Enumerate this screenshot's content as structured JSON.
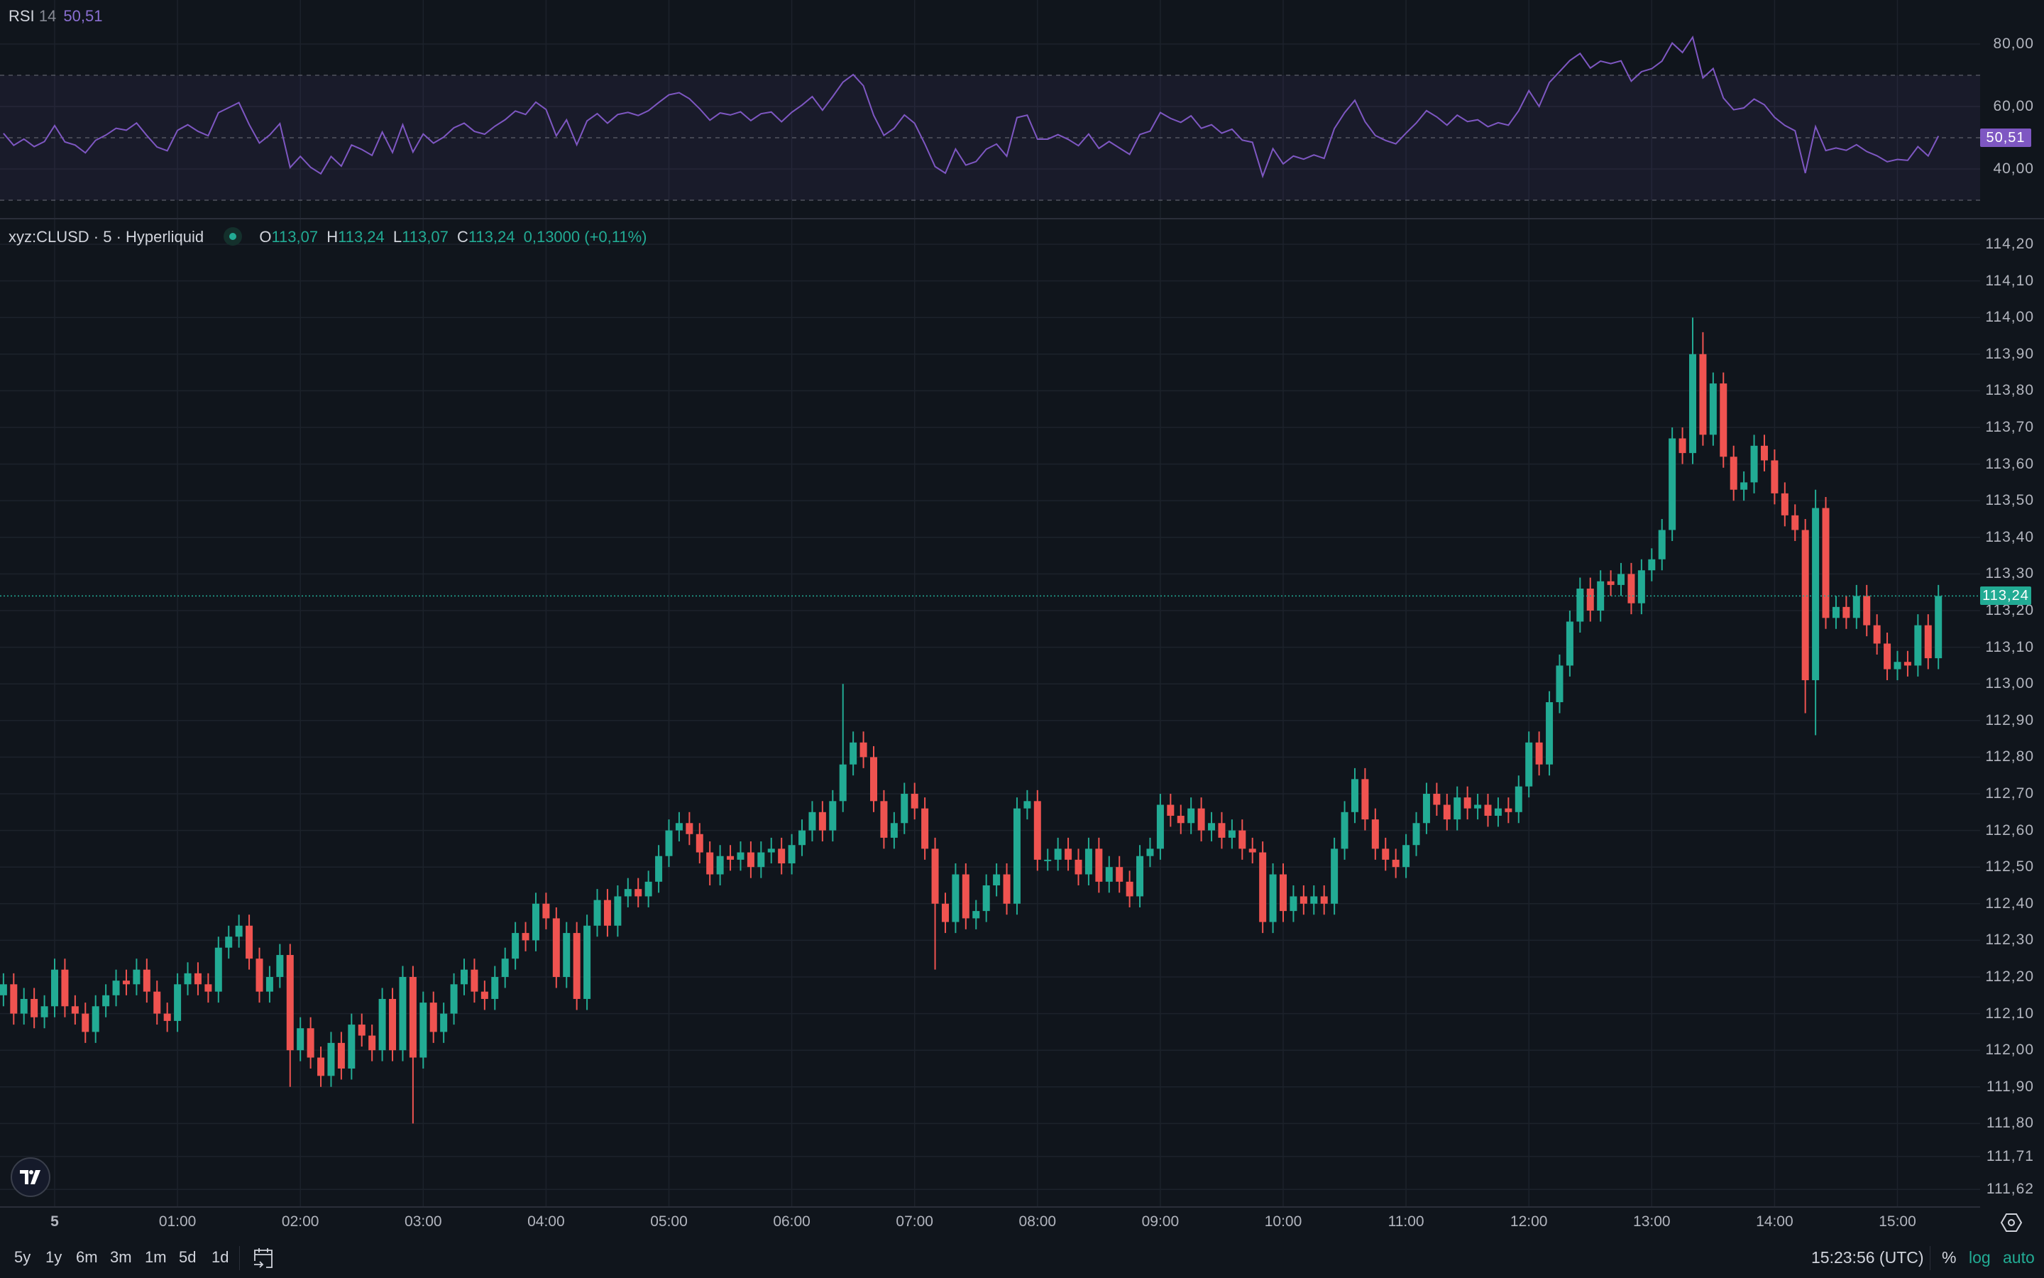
{
  "rsi": {
    "name": "RSI",
    "length": "14",
    "value": "50,51",
    "axis_labels": [
      {
        "v": 80,
        "t": "80,00"
      },
      {
        "v": 60,
        "t": "60,00"
      },
      {
        "v": 40,
        "t": "40,00"
      }
    ],
    "levels": {
      "upper": 70,
      "middle": 50,
      "lower": 30
    },
    "line_color": "#7e57c2"
  },
  "legend": {
    "symbol": "xyz:CLUSD · 5 · Hyperliquid",
    "o_label": "O",
    "o": "113,07",
    "h_label": "H",
    "h": "113,24",
    "l_label": "L",
    "l": "113,07",
    "c_label": "C",
    "c": "113,24",
    "change": "0,13000 (+0,11%)",
    "status": "market-open"
  },
  "colors": {
    "up": "#22ab94",
    "down": "#ef5350",
    "background": "#10151c",
    "grid": "#1c222b",
    "rsi": "#7e57c2"
  },
  "price_axis": [
    {
      "v": 114.2,
      "t": "114,20"
    },
    {
      "v": 114.1,
      "t": "114,10"
    },
    {
      "v": 114.0,
      "t": "114,00"
    },
    {
      "v": 113.9,
      "t": "113,90"
    },
    {
      "v": 113.8,
      "t": "113,80"
    },
    {
      "v": 113.7,
      "t": "113,70"
    },
    {
      "v": 113.6,
      "t": "113,60"
    },
    {
      "v": 113.5,
      "t": "113,50"
    },
    {
      "v": 113.4,
      "t": "113,40"
    },
    {
      "v": 113.3,
      "t": "113,30"
    },
    {
      "v": 113.2,
      "t": "113,20"
    },
    {
      "v": 113.1,
      "t": "113,10"
    },
    {
      "v": 113.0,
      "t": "113,00"
    },
    {
      "v": 112.9,
      "t": "112,90"
    },
    {
      "v": 112.8,
      "t": "112,80"
    },
    {
      "v": 112.7,
      "t": "112,70"
    },
    {
      "v": 112.6,
      "t": "112,60"
    },
    {
      "v": 112.5,
      "t": "112,50"
    },
    {
      "v": 112.4,
      "t": "112,40"
    },
    {
      "v": 112.3,
      "t": "112,30"
    },
    {
      "v": 112.2,
      "t": "112,20"
    },
    {
      "v": 112.1,
      "t": "112,10"
    },
    {
      "v": 112.0,
      "t": "112,00"
    },
    {
      "v": 111.9,
      "t": "111,90"
    },
    {
      "v": 111.8,
      "t": "111,80"
    },
    {
      "v": 111.71,
      "t": "111,71"
    },
    {
      "v": 111.62,
      "t": "111,62"
    }
  ],
  "current_price": {
    "v": 113.24,
    "t": "113,24"
  },
  "time_axis": [
    {
      "h": 0,
      "t": "5"
    },
    {
      "h": 1,
      "t": "01:00"
    },
    {
      "h": 2,
      "t": "02:00"
    },
    {
      "h": 3,
      "t": "03:00"
    },
    {
      "h": 4,
      "t": "04:00"
    },
    {
      "h": 5,
      "t": "05:00"
    },
    {
      "h": 6,
      "t": "06:00"
    },
    {
      "h": 7,
      "t": "07:00"
    },
    {
      "h": 8,
      "t": "08:00"
    },
    {
      "h": 9,
      "t": "09:00"
    },
    {
      "h": 10,
      "t": "10:00"
    },
    {
      "h": 11,
      "t": "11:00"
    },
    {
      "h": 12,
      "t": "12:00"
    },
    {
      "h": 13,
      "t": "13:00"
    },
    {
      "h": 14,
      "t": "14:00"
    },
    {
      "h": 15,
      "t": "15:00"
    }
  ],
  "chart_data": {
    "type": "candlestick",
    "interval_minutes": 5,
    "first_open": 112.15,
    "close": [
      112.18,
      112.1,
      112.14,
      112.09,
      112.12,
      112.22,
      112.12,
      112.1,
      112.05,
      112.12,
      112.15,
      112.19,
      112.18,
      112.22,
      112.16,
      112.1,
      112.08,
      112.18,
      112.21,
      112.18,
      112.16,
      112.28,
      112.31,
      112.34,
      112.25,
      112.16,
      112.2,
      112.26,
      112.0,
      112.06,
      111.98,
      111.93,
      112.02,
      111.95,
      112.07,
      112.04,
      112.0,
      112.14,
      112.0,
      112.2,
      111.98,
      112.13,
      112.05,
      112.1,
      112.18,
      112.22,
      112.16,
      112.14,
      112.2,
      112.25,
      112.32,
      112.3,
      112.4,
      112.36,
      112.2,
      112.32,
      112.14,
      112.34,
      112.41,
      112.34,
      112.42,
      112.44,
      112.42,
      112.46,
      112.53,
      112.6,
      112.62,
      112.59,
      112.54,
      112.48,
      112.53,
      112.52,
      112.54,
      112.5,
      112.54,
      112.55,
      112.51,
      112.56,
      112.6,
      112.65,
      112.6,
      112.68,
      112.78,
      112.84,
      112.8,
      112.68,
      112.58,
      112.62,
      112.7,
      112.66,
      112.55,
      112.4,
      112.35,
      112.48,
      112.36,
      112.38,
      112.45,
      112.48,
      112.4,
      112.66,
      112.68,
      112.52,
      112.52,
      112.55,
      112.52,
      112.48,
      112.55,
      112.46,
      112.5,
      112.46,
      112.42,
      112.53,
      112.55,
      112.67,
      112.64,
      112.62,
      112.66,
      112.6,
      112.62,
      112.58,
      112.6,
      112.55,
      112.54,
      112.35,
      112.48,
      112.38,
      112.42,
      112.4,
      112.42,
      112.4,
      112.55,
      112.65,
      112.74,
      112.63,
      112.55,
      112.52,
      112.5,
      112.56,
      112.62,
      112.7,
      112.67,
      112.63,
      112.69,
      112.66,
      112.67,
      112.64,
      112.66,
      112.65,
      112.72,
      112.84,
      112.78,
      112.95,
      113.05,
      113.17,
      113.26,
      113.2,
      113.28,
      113.27,
      113.3,
      113.22,
      113.31,
      113.34,
      113.42,
      113.67,
      113.63,
      113.9,
      113.68,
      113.82,
      113.62,
      113.53,
      113.55,
      113.65,
      113.61,
      113.52,
      113.46,
      113.42,
      113.01,
      113.48,
      113.18,
      113.21,
      113.18,
      113.24,
      113.16,
      113.11,
      113.04,
      113.06,
      113.05,
      113.16,
      113.07,
      113.24
    ],
    "wick_extremes": [
      {
        "index": 165,
        "h": 114.0
      },
      {
        "index": 166,
        "h": 113.96
      },
      {
        "index": 40,
        "l": 111.8
      },
      {
        "index": 91,
        "l": 112.22
      },
      {
        "index": 176,
        "l": 112.92
      },
      {
        "index": 177,
        "l": 112.86,
        "h": 113.53
      },
      {
        "index": 82,
        "h": 113.0
      },
      {
        "index": 28,
        "l": 111.9
      }
    ]
  },
  "bottom_bar": {
    "ranges": [
      "5y",
      "1y",
      "6m",
      "3m",
      "1m",
      "5d",
      "1d"
    ],
    "clock": "15:23:56 (UTC)",
    "percent": "%",
    "log": "log",
    "auto": "auto"
  }
}
